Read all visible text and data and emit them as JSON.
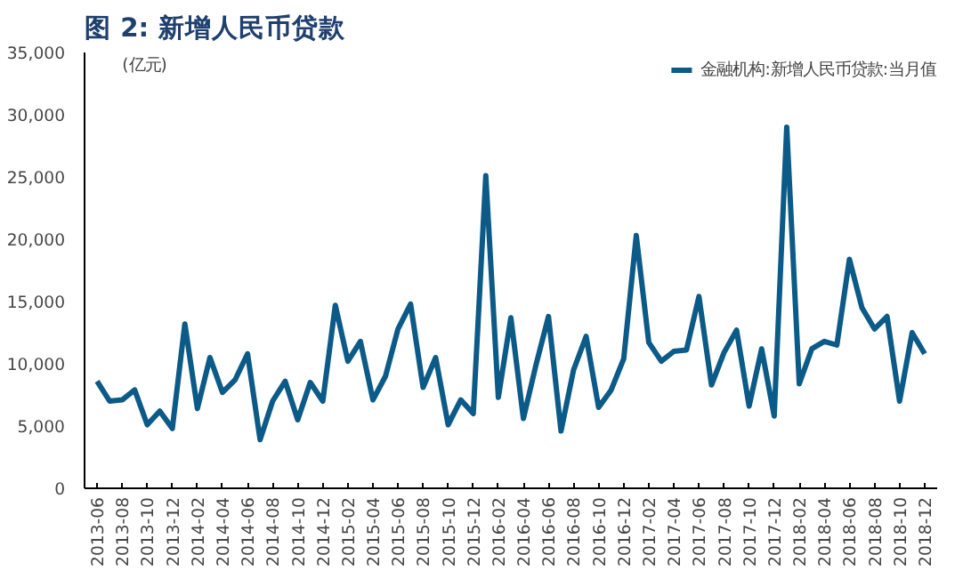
{
  "chart_data": {
    "type": "line",
    "title": "图 2: 新增人民币贷款",
    "ylabel": "(亿元)",
    "categories": [
      "2013-06",
      null,
      "2013-08",
      null,
      "2013-10",
      null,
      "2013-12",
      null,
      "2014-02",
      null,
      "2014-04",
      null,
      "2014-06",
      null,
      "2014-08",
      null,
      "2014-10",
      null,
      "2014-12",
      null,
      "2015-02",
      null,
      "2015-04",
      null,
      "2015-06",
      null,
      "2015-08",
      null,
      "2015-10",
      null,
      "2015-12",
      null,
      "2016-02",
      null,
      "2016-04",
      null,
      "2016-06",
      null,
      "2016-08",
      null,
      "2016-10",
      null,
      "2016-12",
      null,
      "2017-02",
      null,
      "2017-04",
      null,
      "2017-06",
      null,
      "2017-08",
      null,
      "2017-10",
      null,
      "2017-12",
      null,
      "2018-02",
      null,
      "2018-04",
      null,
      "2018-06",
      null,
      "2018-08",
      null,
      "2018-10",
      null,
      "2018-12"
    ],
    "series": [
      {
        "name": "金融机构:新增人民币贷款:当月值",
        "color": "#0b5a87",
        "values": [
          8600,
          7000,
          7100,
          7900,
          5100,
          6200,
          4800,
          13200,
          6400,
          10500,
          7700,
          8700,
          10800,
          3900,
          7000,
          8600,
          5500,
          8500,
          7000,
          14700,
          10200,
          11800,
          7100,
          9000,
          12800,
          14800,
          8100,
          10500,
          5100,
          7100,
          6000,
          25100,
          7300,
          13700,
          5600,
          9900,
          13800,
          4600,
          9500,
          12200,
          6500,
          7900,
          10400,
          20300,
          11700,
          10200,
          11000,
          11100,
          15400,
          8300,
          10900,
          12700,
          6600,
          11200,
          5800,
          29000,
          8400,
          11200,
          11800,
          11500,
          18400,
          14500,
          12800,
          13800,
          7000,
          12500,
          10800
        ]
      }
    ],
    "ylim": [
      0,
      35000
    ],
    "yticks": [
      0,
      {
        "value": 5000,
        "label": "5,000"
      },
      {
        "value": 10000,
        "label": "10,000"
      },
      {
        "value": 15000,
        "label": "15,000"
      },
      {
        "value": 20000,
        "label": "20,000"
      },
      {
        "value": 25000,
        "label": "25,000"
      },
      {
        "value": 30000,
        "label": "30,000"
      },
      {
        "value": 35000,
        "label": "35,000"
      }
    ],
    "grid": false,
    "legend": "top",
    "marker": "none",
    "line_style": "solid"
  }
}
